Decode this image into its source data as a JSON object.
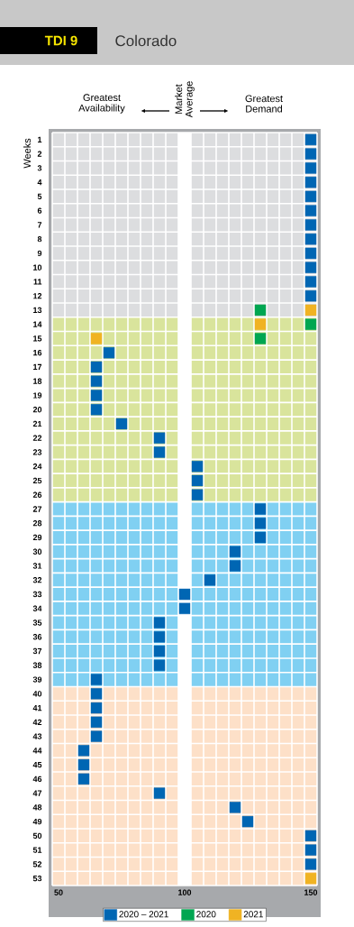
{
  "chart_data": {
    "type": "scatter",
    "orientation": "horizontal",
    "title": "Colorado",
    "subtitle": "TDI 9",
    "ylabel": "Weeks",
    "annotations": [
      "Greatest Availability",
      "Market Average",
      "Greatest Demand"
    ],
    "categories": [
      "1",
      "2",
      "3",
      "4",
      "5",
      "6",
      "7",
      "8",
      "9",
      "10",
      "11",
      "12",
      "13",
      "14",
      "15",
      "16",
      "17",
      "18",
      "19",
      "20",
      "21",
      "22",
      "23",
      "24",
      "25",
      "26",
      "27",
      "28",
      "29",
      "30",
      "31",
      "32",
      "33",
      "34",
      "35",
      "36",
      "37",
      "38",
      "39",
      "40",
      "41",
      "42",
      "43",
      "44",
      "45",
      "46",
      "47",
      "48",
      "49",
      "50",
      "51",
      "52",
      "53"
    ],
    "series": [
      {
        "name": "2020 – 2021",
        "color": "#0066b3",
        "values": [
          150,
          150,
          150,
          150,
          150,
          150,
          150,
          150,
          150,
          150,
          150,
          150,
          null,
          null,
          null,
          70,
          65,
          65,
          65,
          65,
          75,
          90,
          90,
          105,
          105,
          105,
          130,
          130,
          130,
          120,
          120,
          110,
          100,
          100,
          90,
          90,
          90,
          90,
          65,
          65,
          65,
          65,
          65,
          60,
          60,
          60,
          90,
          120,
          125,
          150,
          150,
          150,
          null
        ]
      },
      {
        "name": "2020",
        "color": "#00a651",
        "values": [
          null,
          null,
          null,
          null,
          null,
          null,
          null,
          null,
          null,
          null,
          null,
          null,
          130,
          150,
          130,
          null,
          null,
          null,
          null,
          null,
          null,
          null,
          null,
          null,
          null,
          null,
          null,
          null,
          null,
          null,
          null,
          null,
          null,
          null,
          null,
          null,
          null,
          null,
          null,
          null,
          null,
          null,
          null,
          null,
          null,
          null,
          null,
          null,
          null,
          null,
          null,
          null,
          null
        ]
      },
      {
        "name": "2021",
        "color": "#f0b323",
        "values": [
          null,
          null,
          null,
          null,
          null,
          null,
          null,
          null,
          null,
          null,
          null,
          null,
          150,
          130,
          65,
          null,
          null,
          null,
          null,
          null,
          null,
          null,
          null,
          null,
          null,
          null,
          null,
          null,
          null,
          null,
          null,
          null,
          null,
          null,
          null,
          null,
          null,
          null,
          null,
          null,
          null,
          null,
          null,
          null,
          null,
          null,
          null,
          null,
          null,
          null,
          null,
          null,
          150
        ]
      }
    ],
    "xlim": [
      47.5,
      152.5
    ],
    "xticks": [
      50,
      100,
      150
    ],
    "bands": [
      {
        "axis": "y",
        "from": "1",
        "to": "13",
        "color": "#dcdddf"
      },
      {
        "axis": "y",
        "from": "14",
        "to": "26",
        "color": "#d9e49c"
      },
      {
        "axis": "y",
        "from": "27",
        "to": "39",
        "color": "#80d0f2"
      },
      {
        "axis": "y",
        "from": "40",
        "to": "53",
        "color": "#fde0c8"
      },
      {
        "axis": "x",
        "from": 97.5,
        "to": 102.5,
        "color": "#ffffff"
      }
    ],
    "marker": "square",
    "legend": "bottom"
  }
}
